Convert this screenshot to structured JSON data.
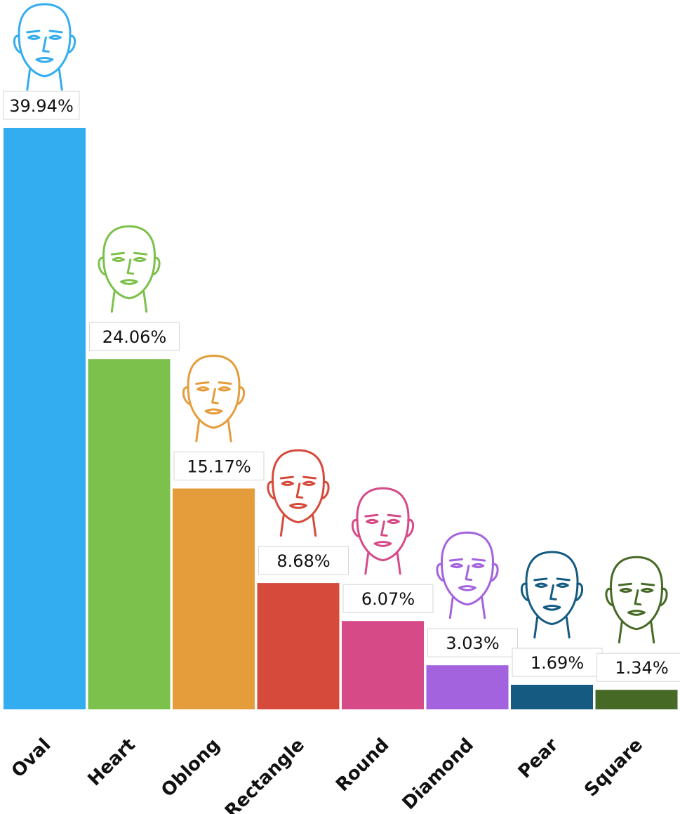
{
  "chart_data": {
    "type": "bar",
    "title": "",
    "xlabel": "",
    "ylabel": "",
    "ylim": [
      0,
      40
    ],
    "grid": false,
    "legend": "none",
    "categories": [
      "Oval",
      "Heart",
      "Oblong",
      "Rectangle",
      "Round",
      "Diamond",
      "Pear",
      "Square"
    ],
    "values": [
      39.94,
      24.06,
      15.17,
      8.68,
      6.07,
      3.03,
      1.69,
      1.34
    ],
    "value_labels": [
      "39.94%",
      "24.06%",
      "15.17%",
      "8.68%",
      "6.07%",
      "3.03%",
      "1.69%",
      "1.34%"
    ],
    "colors": [
      "#33adef",
      "#7cc14b",
      "#e59c3b",
      "#d64a3b",
      "#d64a88",
      "#a463de",
      "#155a80",
      "#466a26"
    ],
    "icons": [
      "face-icon",
      "face-icon",
      "face-icon",
      "face-icon",
      "face-icon",
      "face-icon",
      "face-icon",
      "face-icon"
    ]
  }
}
